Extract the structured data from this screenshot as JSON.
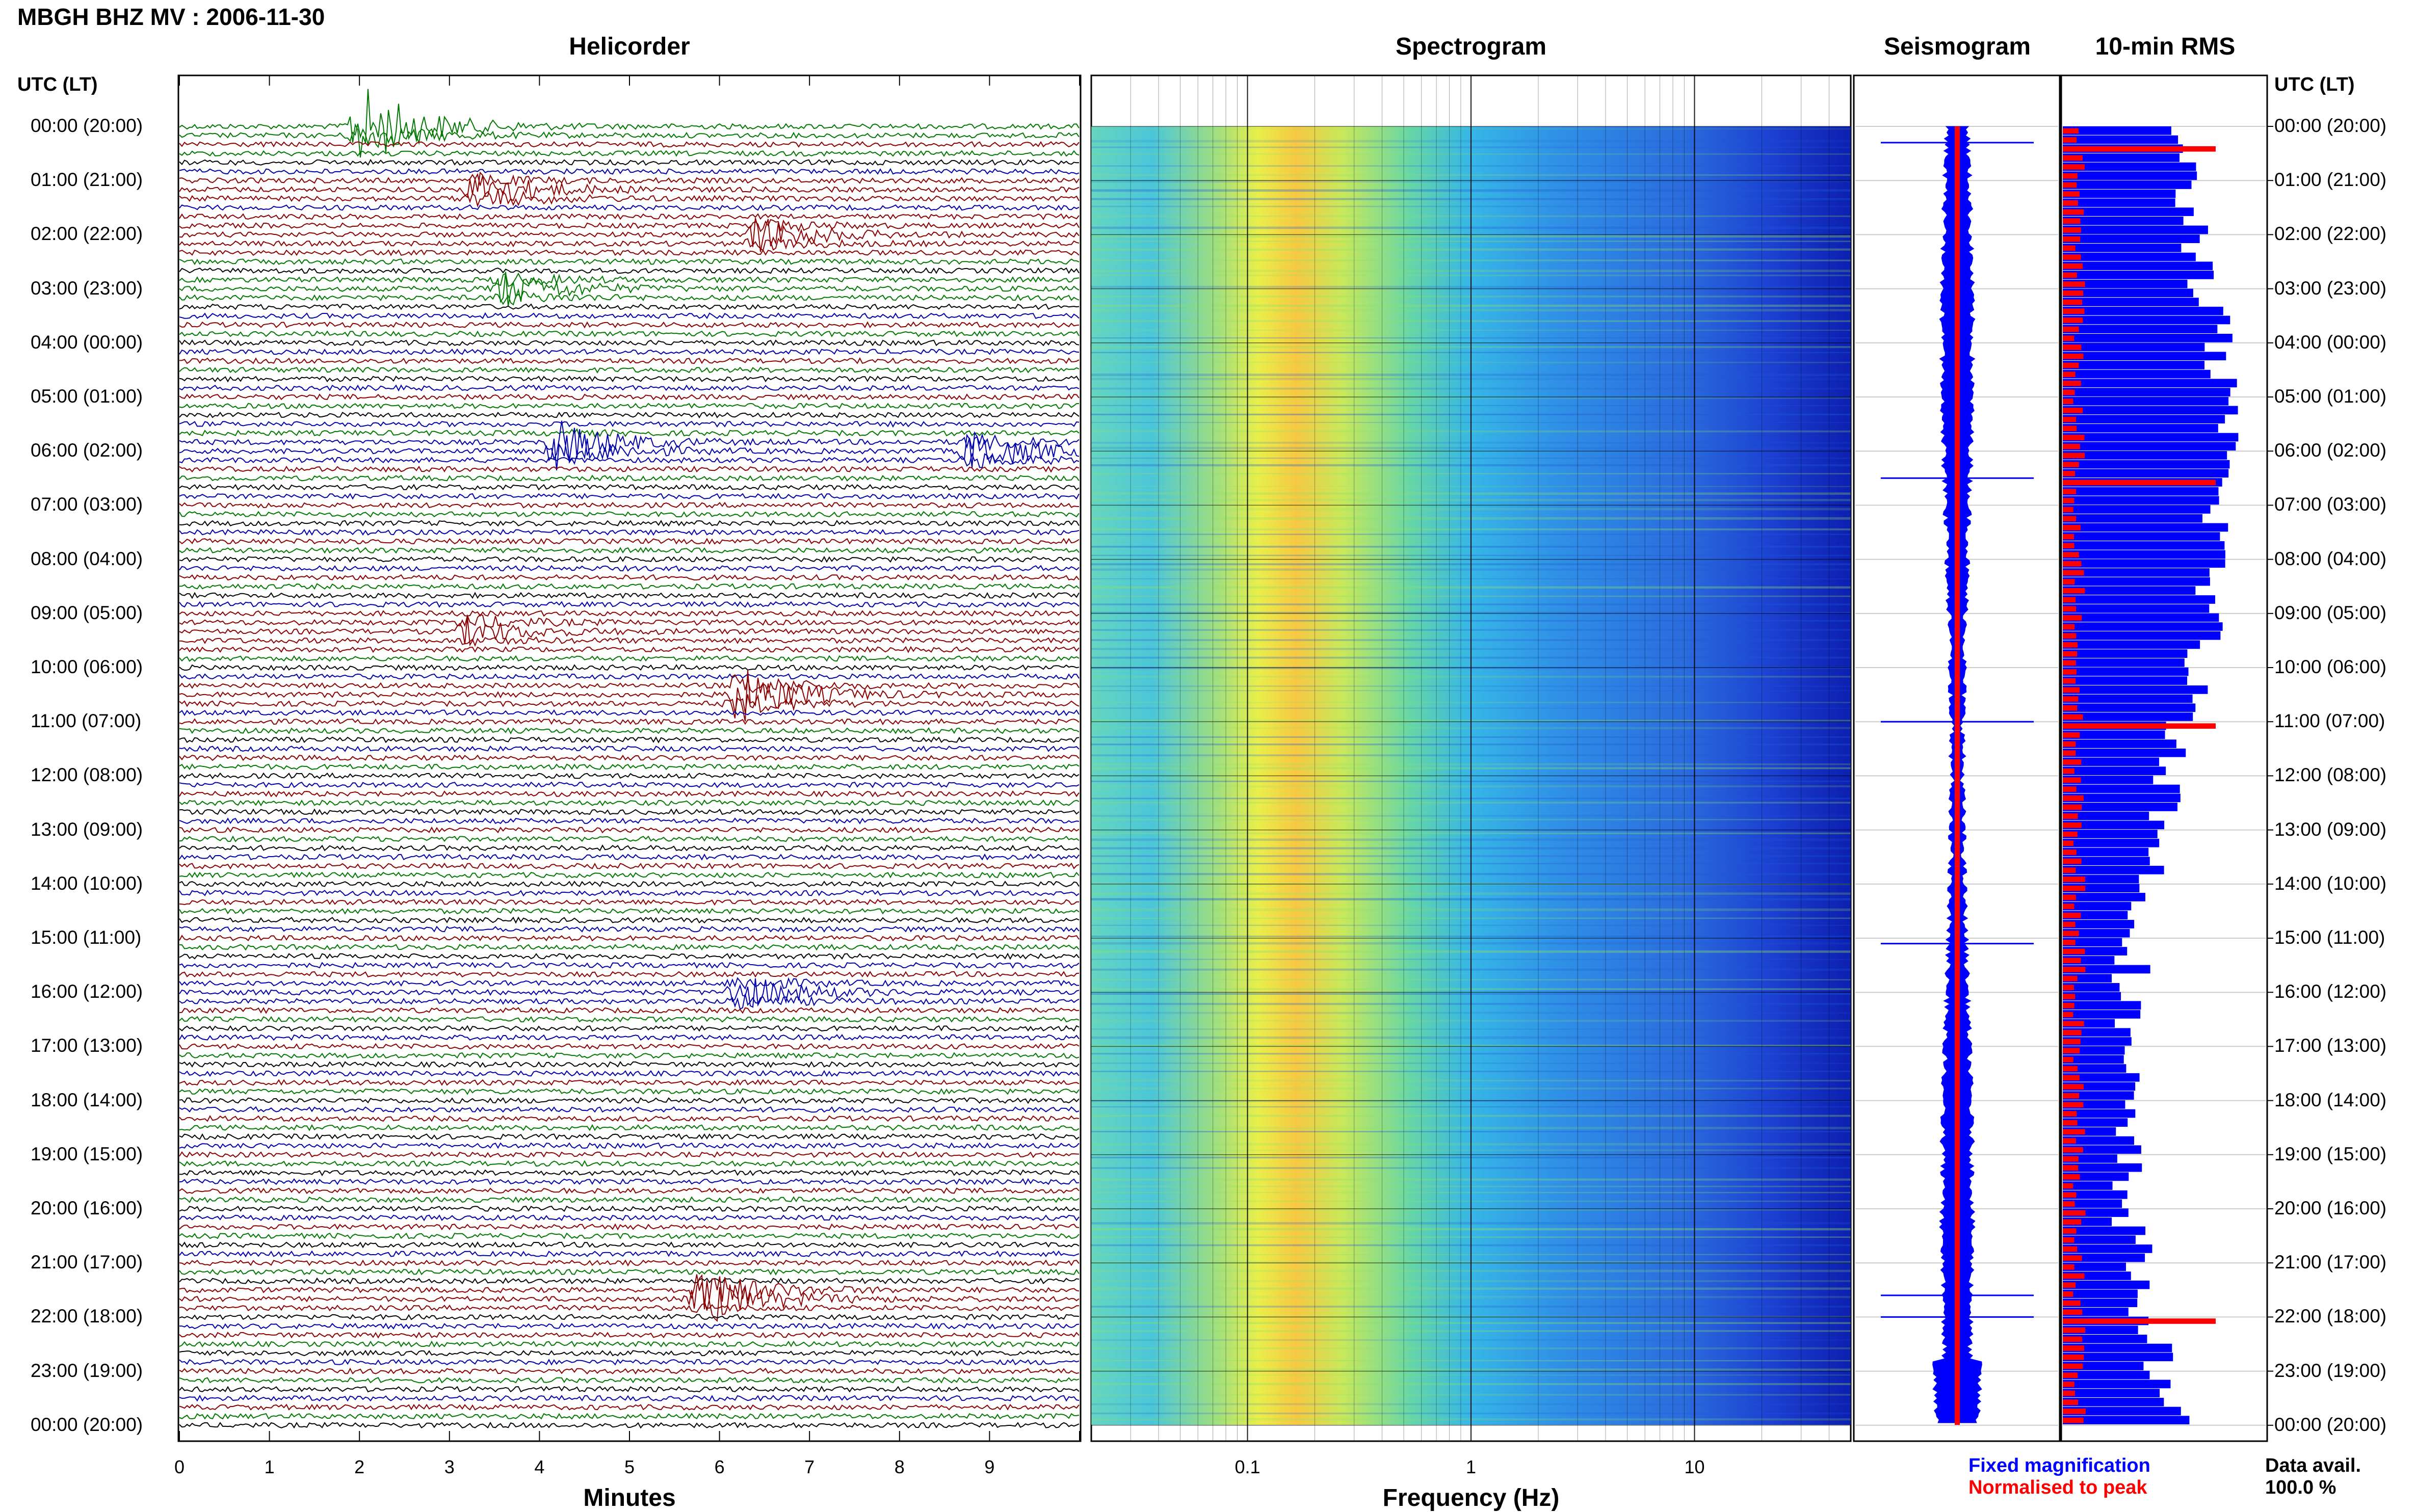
{
  "title": "MBGH BHZ MV : 2006-11-30",
  "panels": {
    "helicorder": "Helicorder",
    "spectrogram": "Spectrogram",
    "seismogram": "Seismogram",
    "rms": "10-min RMS"
  },
  "utc_header": "UTC (LT)",
  "time_labels": [
    "00:00 (20:00)",
    "01:00 (21:00)",
    "02:00 (22:00)",
    "03:00 (23:00)",
    "04:00 (00:00)",
    "05:00 (01:00)",
    "06:00 (02:00)",
    "07:00 (03:00)",
    "08:00 (04:00)",
    "09:00 (05:00)",
    "10:00 (06:00)",
    "11:00 (07:00)",
    "12:00 (08:00)",
    "13:00 (09:00)",
    "14:00 (10:00)",
    "15:00 (11:00)",
    "16:00 (12:00)",
    "17:00 (13:00)",
    "18:00 (14:00)",
    "19:00 (15:00)",
    "20:00 (16:00)",
    "21:00 (17:00)",
    "22:00 (18:00)",
    "23:00 (19:00)",
    "00:00 (20:00)"
  ],
  "legend": {
    "fixed": "Fixed magnification",
    "normalised": "Normalised to peak",
    "fixed_color": "#0000ff",
    "normalised_color": "#ff0000"
  },
  "data_availability": {
    "label": "Data avail.",
    "value": "100.0 %"
  },
  "chart_data": [
    {
      "type": "line",
      "title": "Helicorder",
      "xlabel": "Minutes",
      "x_ticks": [
        "0",
        "1",
        "2",
        "3",
        "4",
        "5",
        "6",
        "7",
        "8",
        "9"
      ],
      "xlim": [
        0,
        10
      ],
      "trace_colors": [
        "#000000",
        "#0000aa",
        "#8b0000",
        "#007700"
      ],
      "events": [
        {
          "minute": 2.0,
          "hour": 0.0,
          "amplitude": 6,
          "color": "#007700"
        },
        {
          "minute": 3.3,
          "hour": 1.2,
          "amplitude": 3,
          "color": "#8b0000"
        },
        {
          "minute": 6.4,
          "hour": 2.0,
          "amplitude": 2.5,
          "color": "#8b0000"
        },
        {
          "minute": 3.6,
          "hour": 3.0,
          "amplitude": 2.5,
          "color": "#007700"
        },
        {
          "minute": 4.2,
          "hour": 5.9,
          "amplitude": 4,
          "color": "#007700"
        },
        {
          "minute": 8.8,
          "hour": 6.0,
          "amplitude": 3,
          "color": "#0000aa"
        },
        {
          "minute": 3.2,
          "hour": 9.3,
          "amplitude": 2,
          "color": "#8b0000"
        },
        {
          "minute": 6.2,
          "hour": 10.5,
          "amplitude": 4,
          "color": "#8b0000"
        },
        {
          "minute": 6.2,
          "hour": 16.0,
          "amplitude": 2.5,
          "color": "#0000aa"
        },
        {
          "minute": 5.8,
          "hour": 21.6,
          "amplitude": 5,
          "color": "#8b0000"
        }
      ]
    },
    {
      "type": "heatmap",
      "title": "Spectrogram",
      "xlabel": "Frequency (Hz)",
      "x_scale": "log",
      "xlim": [
        0.02,
        50
      ],
      "x_ticks": [
        "0.1",
        "1",
        "10"
      ],
      "peak_band_hz": [
        0.15,
        0.4
      ],
      "colormap": [
        "#00007f",
        "#0000ff",
        "#007fff",
        "#00ffff",
        "#7fff7f",
        "#ffff00",
        "#ff7f00",
        "#ff0000"
      ]
    },
    {
      "type": "line",
      "title": "Seismogram",
      "series": [
        {
          "name": "Fixed magnification",
          "color": "#0000ff"
        },
        {
          "name": "Normalised to peak",
          "color": "#ff0000"
        }
      ]
    },
    {
      "type": "bar",
      "title": "10-min RMS",
      "orientation": "horizontal",
      "n_bins": 144,
      "series": [
        {
          "name": "Fixed magnification",
          "color": "#0000ff"
        },
        {
          "name": "Normalised to peak",
          "color": "#ff0000",
          "peaks_hour": [
            0.3,
            6.5,
            11.0,
            22.0
          ]
        }
      ]
    }
  ]
}
